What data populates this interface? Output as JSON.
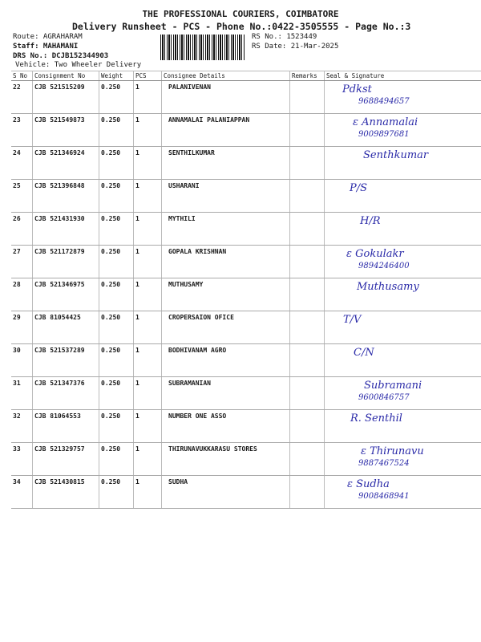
{
  "header": {
    "company": "THE PROFESSIONAL COURIERS, COIMBATORE",
    "subtitle": "Delivery Runsheet - PCS - Phone No.:0422-3505555 - Page No.:3",
    "route": "Route: AGRAHARAM",
    "staff": "Staff: MAHAMANI",
    "drs": "DRS No.: DCJB152344903",
    "vehicle": "Vehicle: Two Wheeler Delivery",
    "rs_no": "RS No.: 1523449",
    "rs_date": "RS Date: 21-Mar-2025"
  },
  "columns": [
    "S No",
    "Consignment No",
    "Weight",
    "PCS",
    "Consignee Details",
    "Remarks",
    "Seal & Signature"
  ],
  "rows": [
    {
      "sno": "22",
      "cn": "CJB 521515209",
      "wt": "0.250",
      "pcs": "1",
      "name": "PALANIVENAN",
      "sig": "Pdkst",
      "phone": "9688494657"
    },
    {
      "sno": "23",
      "cn": "CJB 521549873",
      "wt": "0.250",
      "pcs": "1",
      "name": "ANNAMALAI PALANIAPPAN",
      "sig": "ε Annamalai",
      "phone": "9009897681"
    },
    {
      "sno": "24",
      "cn": "CJB 521346924",
      "wt": "0.250",
      "pcs": "1",
      "name": "SENTHILKUMAR",
      "sig": "Senthkumar",
      "phone": ""
    },
    {
      "sno": "25",
      "cn": "CJB 521396848",
      "wt": "0.250",
      "pcs": "1",
      "name": "USHARANI",
      "sig": "P/S",
      "phone": ""
    },
    {
      "sno": "26",
      "cn": "CJB 521431930",
      "wt": "0.250",
      "pcs": "1",
      "name": "MYTHILI",
      "sig": "H/R",
      "phone": ""
    },
    {
      "sno": "27",
      "cn": "CJB 521172879",
      "wt": "0.250",
      "pcs": "1",
      "name": "GOPALA KRISHNAN",
      "sig": "ε Gokulakr",
      "phone": "9894246400"
    },
    {
      "sno": "28",
      "cn": "CJB 521346975",
      "wt": "0.250",
      "pcs": "1",
      "name": "MUTHUSAMY",
      "sig": "Muthusamy",
      "phone": ""
    },
    {
      "sno": "29",
      "cn": "CJB 81054425",
      "wt": "0.250",
      "pcs": "1",
      "name": "CROPERSAION OFICE",
      "sig": "T/V",
      "phone": ""
    },
    {
      "sno": "30",
      "cn": "CJB 521537289",
      "wt": "0.250",
      "pcs": "1",
      "name": "BODHIVANAM  AGRO",
      "sig": "C/N",
      "phone": ""
    },
    {
      "sno": "31",
      "cn": "CJB 521347376",
      "wt": "0.250",
      "pcs": "1",
      "name": "SUBRAMANIAN",
      "sig": "Subramani",
      "phone": "9600846757"
    },
    {
      "sno": "32",
      "cn": "CJB 81064553",
      "wt": "0.250",
      "pcs": "1",
      "name": "NUMBER ONE ASSO",
      "sig": "R. Senthil",
      "phone": ""
    },
    {
      "sno": "33",
      "cn": "CJB 521329757",
      "wt": "0.250",
      "pcs": "1",
      "name": "THIRUNAVUKKARASU STORES",
      "sig": "ε Thirunavu",
      "phone": "9887467524"
    },
    {
      "sno": "34",
      "cn": "CJB 521430815",
      "wt": "0.250",
      "pcs": "1",
      "name": "SUDHA",
      "sig": "ε Sudha",
      "phone": "9008468941"
    }
  ],
  "colors": {
    "ink": "#2a2aa8"
  }
}
